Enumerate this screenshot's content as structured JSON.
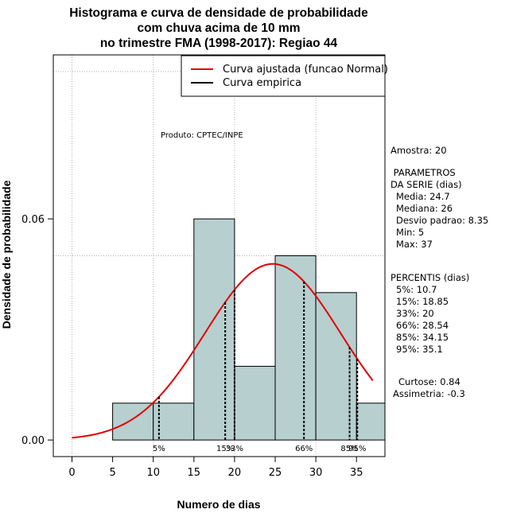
{
  "chart_data": {
    "type": "bar",
    "title": [
      "Histograma e curva de densidade de probabilidade",
      "com chuva acima de 10 mm",
      "no trimestre FMA (1998-2017): Regiao 44"
    ],
    "xlabel": "Numero de dias",
    "ylabel": "Densidade de probabilidade",
    "xlim": [
      -2.3,
      38.5
    ],
    "ylim": [
      -0.0045,
      0.1045
    ],
    "x_ticks": [
      0,
      5,
      10,
      15,
      20,
      25,
      30,
      35
    ],
    "y_ticks": [
      0.0,
      0.06
    ],
    "y_tick_labels": [
      "0.00",
      "0.06"
    ],
    "grid_x": [
      0,
      10,
      20,
      30
    ],
    "grid_y": [
      0.05,
      0.1
    ],
    "bins": [
      {
        "start": 5,
        "end": 10,
        "density": 0.01
      },
      {
        "start": 10,
        "end": 15,
        "density": 0.01
      },
      {
        "start": 15,
        "end": 20,
        "density": 0.06
      },
      {
        "start": 20,
        "end": 25,
        "density": 0.02
      },
      {
        "start": 25,
        "end": 30,
        "density": 0.05
      },
      {
        "start": 30,
        "end": 35,
        "density": 0.04
      },
      {
        "start": 35,
        "end": 40,
        "density": 0.01
      }
    ],
    "bar_color": "#b7cfcf",
    "curve_color": "#e00000",
    "normal_fit": {
      "mean": 24.7,
      "sd": 8.35,
      "x_range": [
        0,
        37
      ]
    },
    "percentile_lines": [
      {
        "label": "5%",
        "x": 10.7
      },
      {
        "label": "15%",
        "x": 18.85
      },
      {
        "label": "33%",
        "x": 20
      },
      {
        "label": "66%",
        "x": 28.54
      },
      {
        "label": "85%",
        "x": 34.15
      },
      {
        "label": "95%",
        "x": 35.1
      }
    ],
    "legend": {
      "position": "top-right",
      "entries": [
        {
          "label": "Curva ajustada (funcao Normal)",
          "color": "#e00000"
        },
        {
          "label": "Curva empirica",
          "color": "#000000"
        }
      ]
    },
    "annotation": "Produto: CPTEC/INPE"
  },
  "stats": {
    "sample": "Amostra: 20",
    "params_title": [
      " PARAMETROS",
      "DA SERIE (dias)"
    ],
    "params": [
      "Media: 24.7",
      "Mediana: 26",
      "Desvio padrao: 8.35",
      "Min: 5",
      "Max: 37"
    ],
    "percentis_title": "PERCENTIS (dias)",
    "percentis": [
      "5%: 10.7",
      "15%: 18.85",
      "33%: 20",
      "66%: 28.54",
      "85%: 34.15",
      "95%: 35.1"
    ],
    "curtose": "Curtose: 0.84",
    "assimetria": "Assimetria: -0.3"
  }
}
